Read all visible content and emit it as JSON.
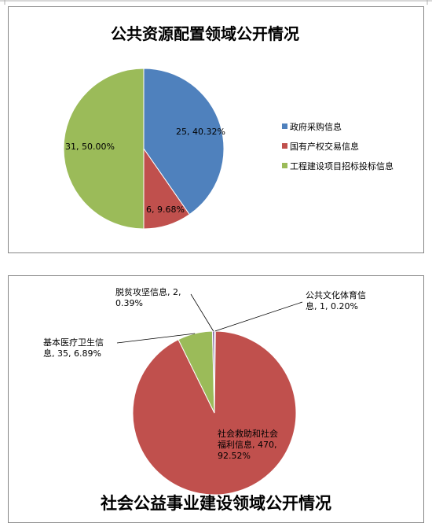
{
  "chart_data": [
    {
      "type": "pie",
      "title": "公共资源配置领域公开情况",
      "start_angle": 0,
      "slices": [
        {
          "name": "政府采购信息",
          "value": 25,
          "percent": "40.32%",
          "label_lines": [
            "25, 40.32%"
          ],
          "color": "#4F81BD"
        },
        {
          "name": "国有产权交易信息",
          "value": 6,
          "percent": "9.68%",
          "label_lines": [
            "6, 9.68%"
          ],
          "color": "#C0504D"
        },
        {
          "name": "工程建设项目招标投标信息",
          "value": 31,
          "percent": "50.00%",
          "label_lines": [
            "31, 50.00%"
          ],
          "color": "#9BBB59"
        }
      ],
      "legend": {
        "position": "right",
        "entries": [
          "政府采购信息",
          "国有产权交易信息",
          "工程建设项目招标投标信息"
        ]
      }
    },
    {
      "type": "pie",
      "title": "社会公益事业建设领域公开情况",
      "start_angle": 0,
      "slices": [
        {
          "name": "公共文化体育信息",
          "value": 1,
          "percent": "0.20%",
          "label_lines": [
            "公共文化体育信",
            "息, 1, 0.20%"
          ],
          "color": "#4F81BD"
        },
        {
          "name": "社会救助和社会福利信息",
          "value": 470,
          "percent": "92.52%",
          "label_lines": [
            "社会救助和社会",
            "福利信息, 470,",
            "92.52%"
          ],
          "color": "#C0504D"
        },
        {
          "name": "基本医疗卫生信息",
          "value": 35,
          "percent": "6.89%",
          "label_lines": [
            "基本医疗卫生信",
            "息, 35, 6.89%"
          ],
          "color": "#9BBB59"
        },
        {
          "name": "脱贫攻坚信息",
          "value": 2,
          "percent": "0.39%",
          "label_lines": [
            "脱贫攻坚信息, 2,",
            "0.39%"
          ],
          "color": "#8064A2"
        }
      ]
    }
  ]
}
